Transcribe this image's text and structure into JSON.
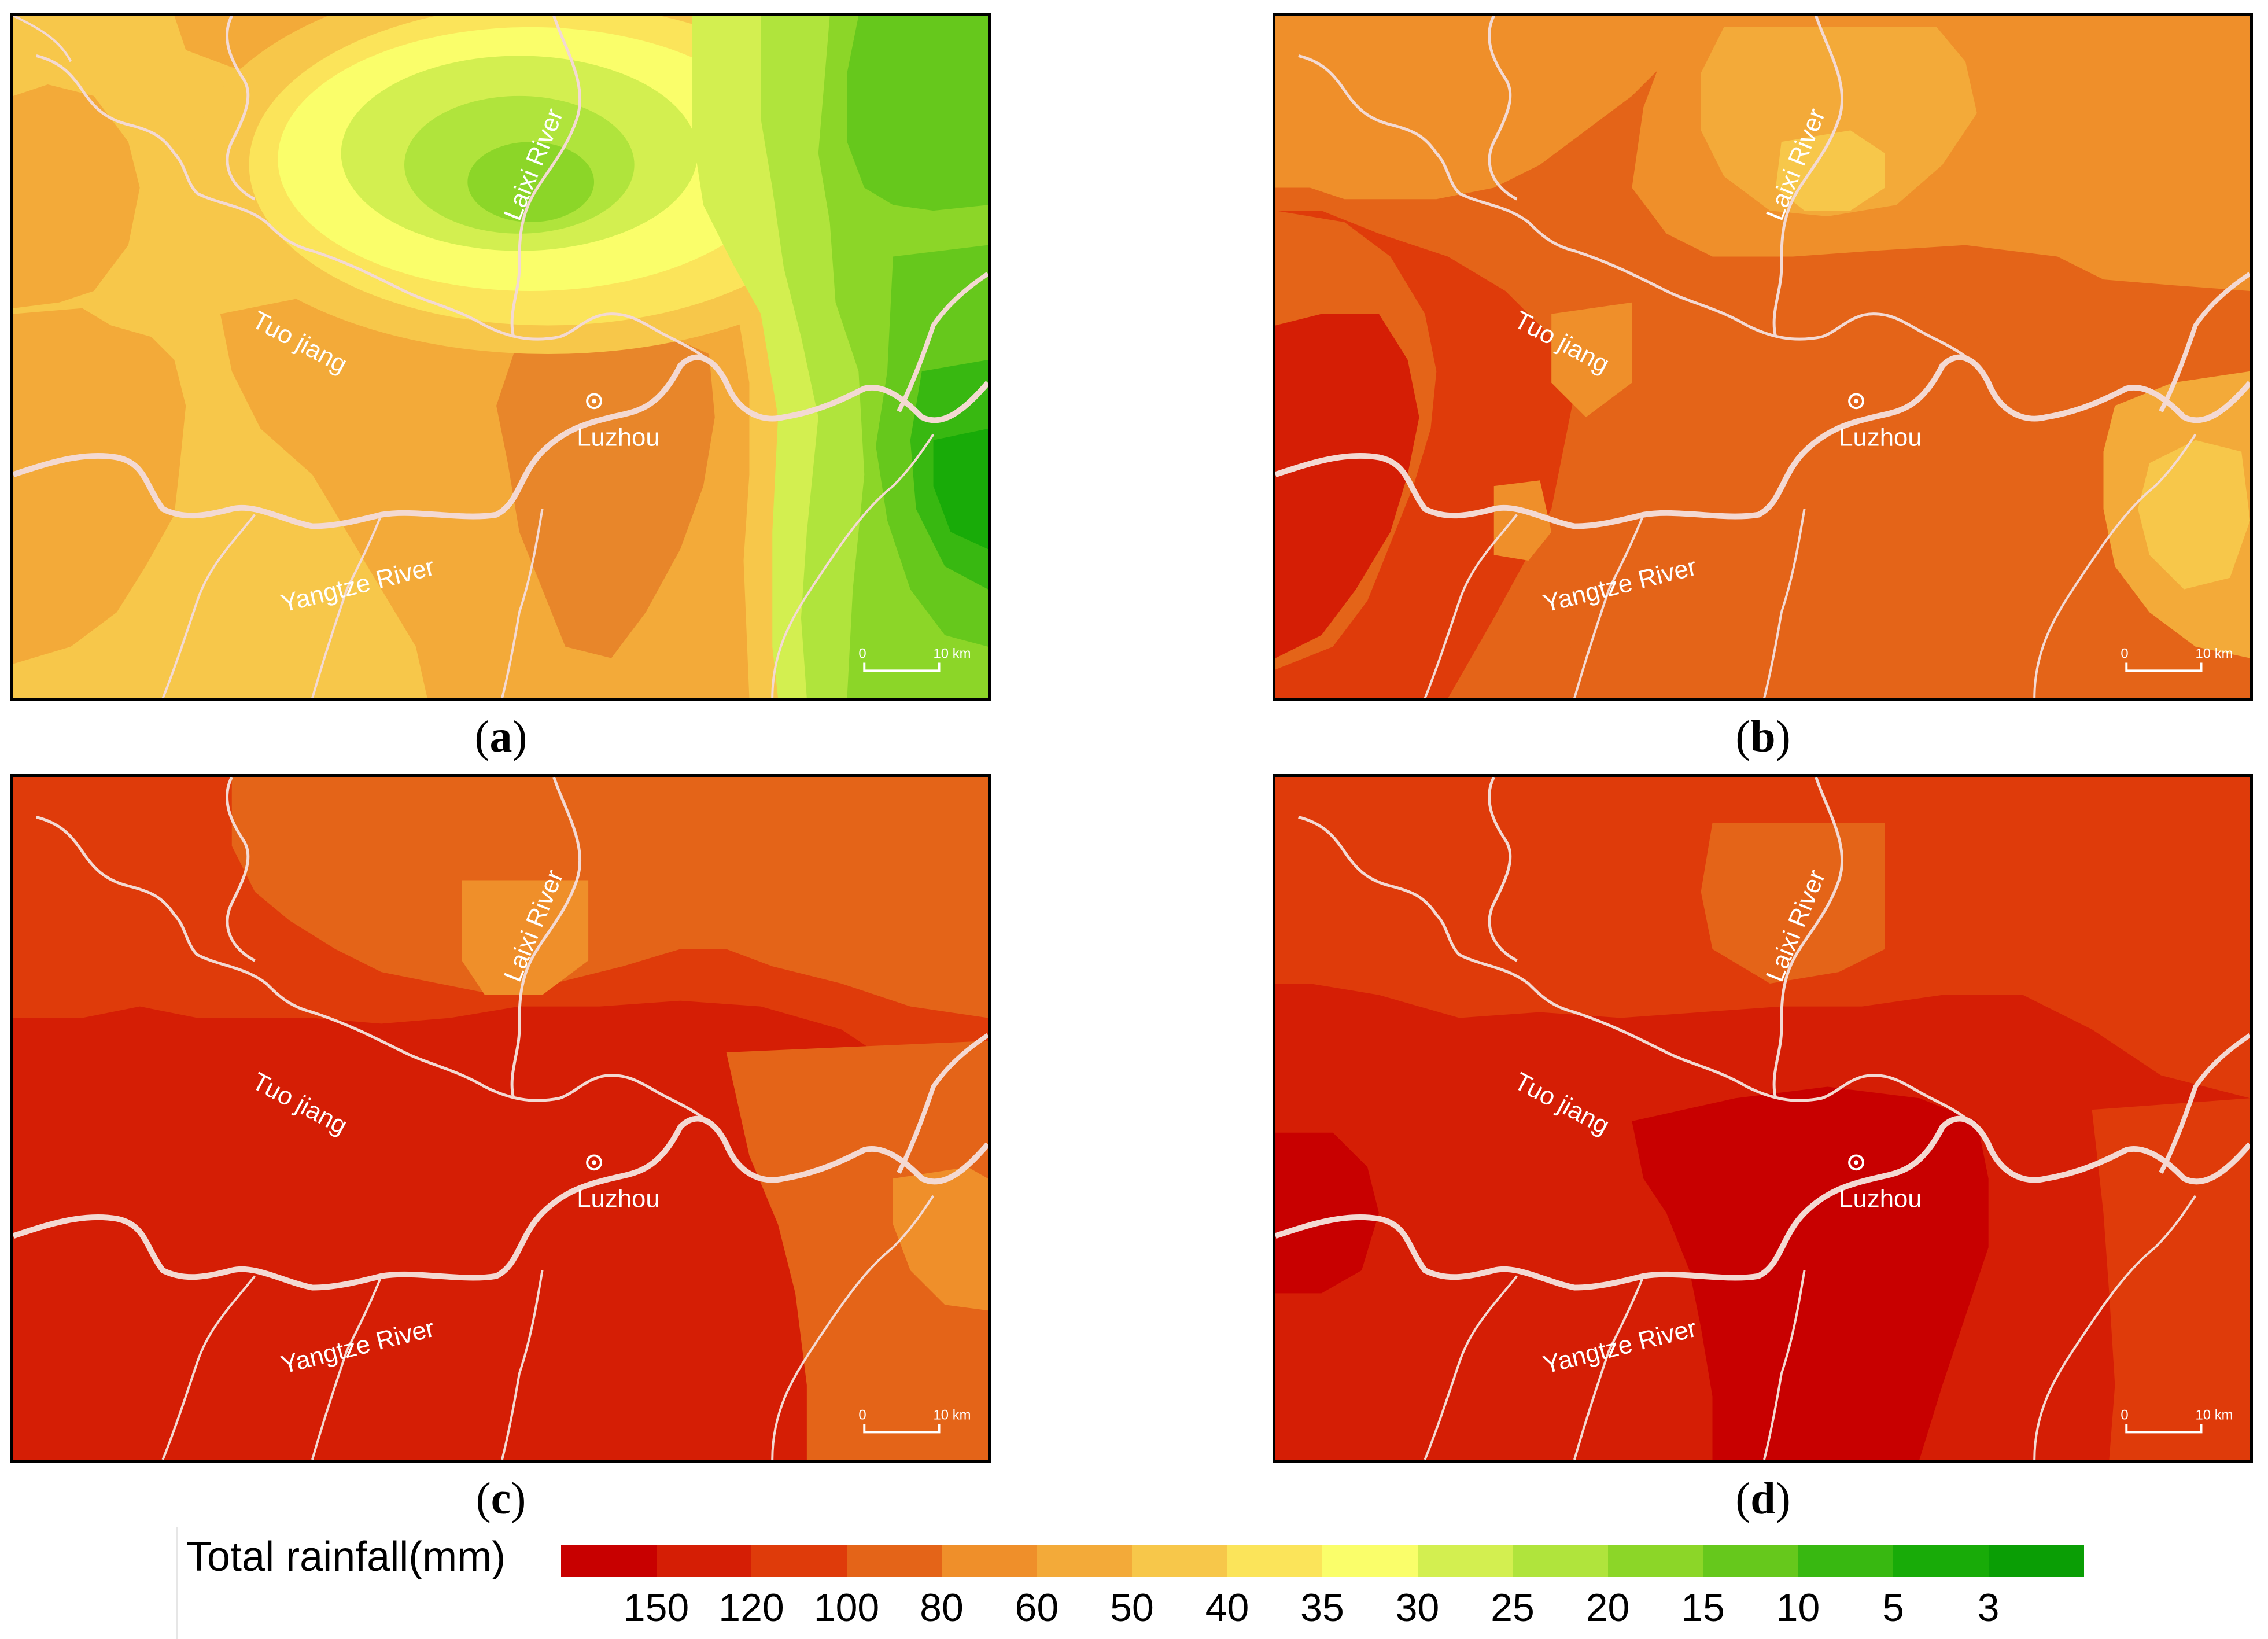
{
  "panels": [
    {
      "id": "a",
      "caption": "a"
    },
    {
      "id": "b",
      "caption": "b"
    },
    {
      "id": "c",
      "caption": "c"
    },
    {
      "id": "d",
      "caption": "d"
    }
  ],
  "map_labels": {
    "tuo": "Tuo jiang",
    "laixi": "Laixi River",
    "yangtze": "Yangtze River",
    "city": "Luzhou",
    "scale_zero": "0",
    "scale_ten": "10 km"
  },
  "legend": {
    "title": "Total rainfall(mm)",
    "colors": [
      "#c80000",
      "#d51e05",
      "#df3b0a",
      "#e46418",
      "#ef8f2a",
      "#f3aa39",
      "#f7c74a",
      "#fbe45a",
      "#fafe6a",
      "#d3ef50",
      "#b0e43c",
      "#8cd628",
      "#66c81c",
      "#38b811",
      "#18ab08",
      "#0a9e05"
    ],
    "ticks": [
      "150",
      "120",
      "100",
      "80",
      "60",
      "50",
      "40",
      "35",
      "30",
      "25",
      "20",
      "15",
      "10",
      "5",
      "3"
    ]
  }
}
